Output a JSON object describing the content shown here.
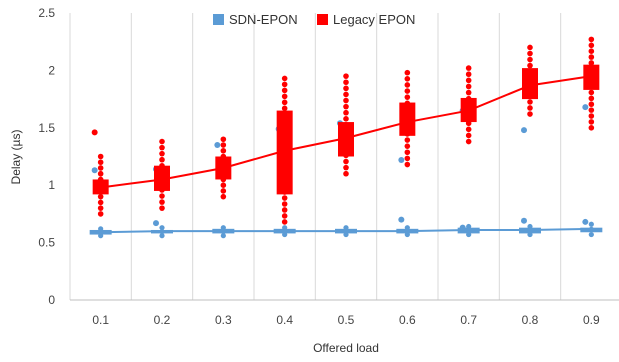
{
  "chart_data": {
    "type": "box",
    "title": "",
    "xlabel": "Offered load",
    "ylabel": "Delay (µs)",
    "x": [
      0.1,
      0.2,
      0.3,
      0.4,
      0.5,
      0.6,
      0.7,
      0.8,
      0.9
    ],
    "x_tick_labels": [
      "0.1",
      "0.2",
      "0.3",
      "0.4",
      "0.5",
      "0.6",
      "0.7",
      "0.8",
      "0.9"
    ],
    "ylim": [
      0,
      2.5
    ],
    "y_ticks": [
      0,
      0.5,
      1,
      1.5,
      2,
      2.5
    ],
    "y_tick_labels": [
      "0",
      "0.5",
      "1",
      "1.5",
      "2",
      "2.5"
    ],
    "grid": {
      "vertical": true,
      "horizontal": false
    },
    "legend_position": "top-center",
    "series": [
      {
        "name": "SDN-EPON",
        "color": "#5b9bd5",
        "mean": [
          0.59,
          0.6,
          0.6,
          0.6,
          0.6,
          0.6,
          0.61,
          0.61,
          0.62
        ],
        "box_low": [
          0.57,
          0.58,
          0.58,
          0.58,
          0.58,
          0.58,
          0.58,
          0.58,
          0.59
        ],
        "box_high": [
          0.61,
          0.61,
          0.62,
          0.62,
          0.62,
          0.62,
          0.63,
          0.63,
          0.63
        ],
        "whisker_low": [
          0.56,
          0.56,
          0.56,
          0.57,
          0.57,
          0.57,
          0.57,
          0.57,
          0.57
        ],
        "whisker_high": [
          0.62,
          0.63,
          0.63,
          0.63,
          0.63,
          0.63,
          0.64,
          0.64,
          0.66
        ],
        "outliers": [
          [
            1.13
          ],
          [
            1.14,
            0.67
          ],
          [
            1.35
          ],
          [
            1.49
          ],
          [
            1.54
          ],
          [
            1.22,
            0.7
          ],
          [
            1.65,
            0.63
          ],
          [
            1.48,
            0.69
          ],
          [
            1.68,
            0.68
          ]
        ]
      },
      {
        "name": "Legacy EPON",
        "color": "#ff0000",
        "mean": [
          0.98,
          1.05,
          1.15,
          1.3,
          1.41,
          1.55,
          1.65,
          1.87,
          1.95
        ],
        "box_low": [
          0.92,
          0.95,
          1.05,
          0.92,
          1.25,
          1.43,
          1.55,
          1.75,
          1.83
        ],
        "box_high": [
          1.05,
          1.17,
          1.25,
          1.65,
          1.55,
          1.72,
          1.76,
          2.02,
          2.05
        ],
        "whisker_low": [
          0.75,
          0.8,
          0.9,
          0.68,
          1.1,
          1.18,
          1.38,
          1.62,
          1.5
        ],
        "whisker_high": [
          1.25,
          1.38,
          1.4,
          1.93,
          1.95,
          1.98,
          2.02,
          2.2,
          2.27
        ],
        "outliers": [
          [
            1.46
          ],
          [],
          [],
          [],
          [],
          [],
          [],
          [],
          []
        ]
      }
    ]
  }
}
